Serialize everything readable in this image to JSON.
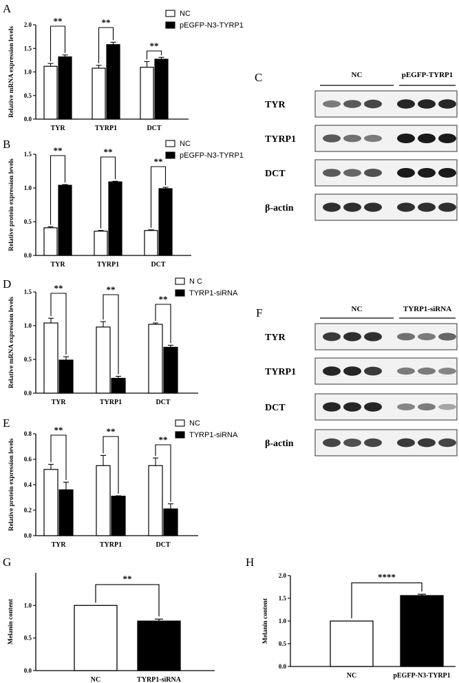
{
  "colors": {
    "nc_fill": "#ffffff",
    "treat_fill": "#000000",
    "axis": "#000000",
    "band": "#1a1a1a",
    "blot_bg": "#f2f2f2"
  },
  "chart_data": [
    {
      "panel": "A",
      "type": "bar",
      "categories": [
        "TYR",
        "TYRP1",
        "DCT"
      ],
      "series": [
        {
          "name": "NC",
          "values": [
            1.12,
            1.08,
            1.1
          ],
          "errors": [
            0.06,
            0.06,
            0.12
          ]
        },
        {
          "name": "pEGFP-N3-TYRP1",
          "values": [
            1.32,
            1.58,
            1.27
          ],
          "errors": [
            0.04,
            0.05,
            0.04
          ]
        }
      ],
      "ylabel": "Relative mRNA expression levels",
      "ylim": [
        0,
        2.0
      ],
      "yticks": [
        "0.0",
        "0.5",
        "1.0",
        "1.5",
        "2.0"
      ],
      "significance": [
        "**",
        "**",
        "**"
      ],
      "legend": "top-right"
    },
    {
      "panel": "B",
      "type": "bar",
      "categories": [
        "TYR",
        "TYRP1",
        "DCT"
      ],
      "series": [
        {
          "name": "NC",
          "values": [
            0.41,
            0.36,
            0.37
          ],
          "errors": [
            0.015,
            0.01,
            0.01
          ]
        },
        {
          "name": "pEGFP-N3-TYRP1",
          "values": [
            1.04,
            1.09,
            0.99
          ],
          "errors": [
            0.01,
            0.01,
            0.02
          ]
        }
      ],
      "ylabel": "Relative protein expression levels",
      "ylim": [
        0,
        1.5
      ],
      "yticks": [
        "0.0",
        "0.5",
        "1.0",
        "1.5"
      ],
      "significance": [
        "**",
        "**",
        "**"
      ],
      "legend": "top-right"
    },
    {
      "panel": "D",
      "type": "bar",
      "categories": [
        "TYR",
        "TYRP1",
        "DCT"
      ],
      "series": [
        {
          "name": "N C",
          "values": [
            1.04,
            0.98,
            1.02
          ],
          "errors": [
            0.07,
            0.08,
            0.02
          ]
        },
        {
          "name": "TYRP1-siRNA",
          "values": [
            0.49,
            0.22,
            0.68
          ],
          "errors": [
            0.05,
            0.03,
            0.03
          ]
        }
      ],
      "ylabel": "Relative mRNA expression levels",
      "ylim": [
        0,
        1.5
      ],
      "yticks": [
        "0.0",
        "0.5",
        "1.0",
        "1.5"
      ],
      "significance": [
        "**",
        "**",
        "**"
      ],
      "legend": "top-right"
    },
    {
      "panel": "E",
      "type": "bar",
      "categories": [
        "TYR",
        "TYRP1",
        "DCT"
      ],
      "series": [
        {
          "name": "NC",
          "values": [
            0.52,
            0.55,
            0.55
          ],
          "errors": [
            0.04,
            0.08,
            0.06
          ]
        },
        {
          "name": "TYRP1-siRNA",
          "values": [
            0.36,
            0.31,
            0.21
          ],
          "errors": [
            0.06,
            0.003,
            0.04
          ]
        }
      ],
      "ylabel": "Relative protein expression levels",
      "ylim": [
        0,
        0.8
      ],
      "yticks": [
        "0.0",
        "0.2",
        "0.4",
        "0.6",
        "0.8"
      ],
      "significance": [
        "**",
        "**",
        "**"
      ],
      "legend": "top-right"
    },
    {
      "panel": "G",
      "type": "bar",
      "categories": [
        "NC",
        "TYRP1-siRNA"
      ],
      "series": [
        {
          "values": [
            1.0,
            0.76
          ],
          "errors": [
            0.0,
            0.03
          ]
        }
      ],
      "ylabel": "Melanin  content",
      "ylim": [
        0,
        1.5
      ],
      "yticks": [
        "0.0",
        "0.5",
        "1.0"
      ],
      "significance": [
        "**"
      ]
    },
    {
      "panel": "H",
      "type": "bar",
      "categories": [
        "NC",
        "pEGFP-N3-TYRP1"
      ],
      "series": [
        {
          "values": [
            1.0,
            1.56
          ],
          "errors": [
            0.0,
            0.03
          ]
        }
      ],
      "ylabel": "Melanin content",
      "ylim": [
        0,
        2.0
      ],
      "yticks": [
        "0.0",
        "0.5",
        "1.0",
        "1.5",
        "2.0"
      ],
      "significance": [
        "****"
      ]
    }
  ],
  "blots": [
    {
      "panel": "C",
      "groups": [
        "NC",
        "pEGFP-TYRP1"
      ],
      "rows": [
        {
          "label": "TYR",
          "intensity": [
            0.55,
            0.7,
            0.8,
            0.95,
            0.95,
            0.95
          ]
        },
        {
          "label": "TYRP1",
          "intensity": [
            0.7,
            0.6,
            0.55,
            1.0,
            1.0,
            1.0
          ]
        },
        {
          "label": "DCT",
          "intensity": [
            0.7,
            0.65,
            0.75,
            1.0,
            1.0,
            1.0
          ]
        },
        {
          "label": "β-actin",
          "intensity": [
            0.9,
            0.9,
            0.9,
            0.9,
            0.9,
            0.9
          ]
        }
      ]
    },
    {
      "panel": "F",
      "groups": [
        "NC",
        "TYRP1-siRNA"
      ],
      "rows": [
        {
          "label": "TYR",
          "intensity": [
            0.85,
            0.9,
            0.9,
            0.6,
            0.55,
            0.65
          ]
        },
        {
          "label": "TYRP1",
          "intensity": [
            0.95,
            0.95,
            0.85,
            0.55,
            0.55,
            0.5
          ]
        },
        {
          "label": "DCT",
          "intensity": [
            0.95,
            0.95,
            0.95,
            0.5,
            0.55,
            0.35
          ]
        },
        {
          "label": "β-actin",
          "intensity": [
            0.8,
            0.75,
            0.8,
            0.85,
            0.85,
            0.8
          ]
        }
      ]
    }
  ]
}
